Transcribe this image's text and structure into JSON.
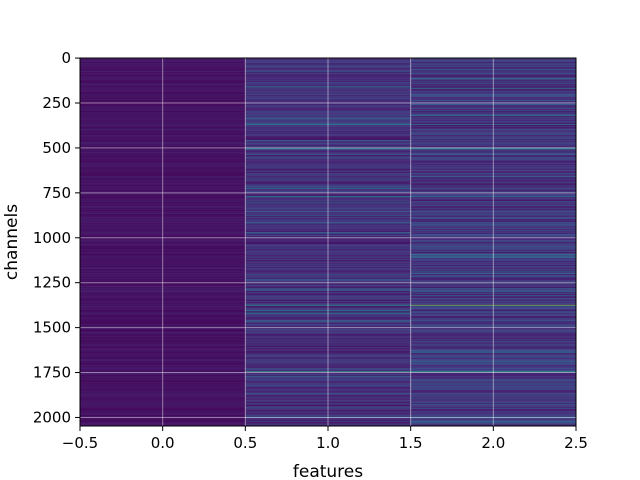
{
  "chart_data": {
    "type": "heatmap",
    "title": "",
    "xlabel": "features",
    "ylabel": "channels",
    "colormap": "viridis",
    "grid": true,
    "x_columns": [
      0,
      1,
      2
    ],
    "xlim": [
      -0.5,
      2.5
    ],
    "ylim": [
      2047.5,
      -0.5
    ],
    "rows": 2048,
    "xticks": [
      -0.5,
      0.0,
      0.5,
      1.0,
      1.5,
      2.0,
      2.5
    ],
    "xtick_labels": [
      "−0.5",
      "0.0",
      "0.5",
      "1.0",
      "1.5",
      "2.0",
      "2.5"
    ],
    "yticks": [
      0,
      250,
      500,
      750,
      1000,
      1250,
      1500,
      1750,
      2000
    ],
    "ytick_labels": [
      "0",
      "250",
      "500",
      "750",
      "1000",
      "1250",
      "1500",
      "1750",
      "2000"
    ],
    "column_baseline": [
      0.05,
      0.14,
      0.16
    ],
    "highlight_rows": [
      {
        "row": 370,
        "values": [
          0.05,
          0.45,
          0.4
        ]
      },
      {
        "row": 505,
        "values": [
          0.05,
          0.5,
          0.5
        ]
      },
      {
        "row": 770,
        "values": [
          0.05,
          0.45,
          0.35
        ]
      },
      {
        "row": 1375,
        "values": [
          0.05,
          0.55,
          0.8
        ]
      },
      {
        "row": 1745,
        "values": [
          0.05,
          0.55,
          0.55
        ]
      }
    ]
  }
}
